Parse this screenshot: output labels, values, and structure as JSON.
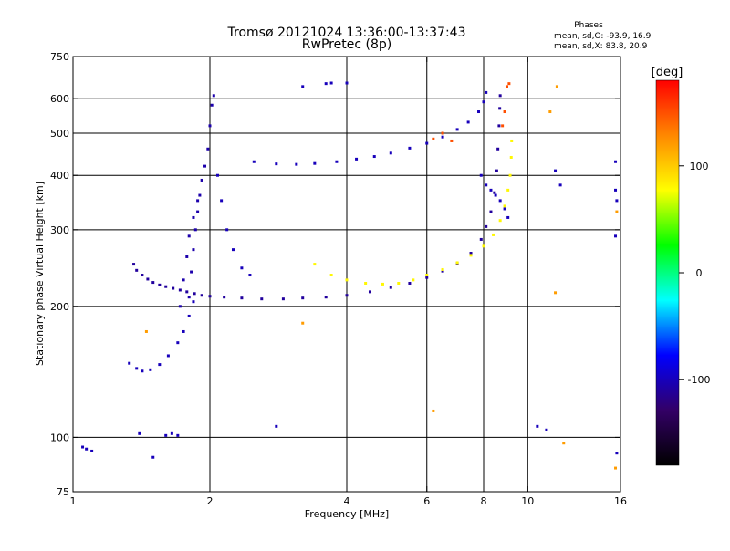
{
  "title": {
    "line1": "Tromsø 20121024 13:36:00-13:37:43",
    "line2": "RwPretec (8p)"
  },
  "stats": {
    "heading": "Phases",
    "line_o": "mean, sd,O: -93.9, 16.9",
    "line_x": "mean, sd,X:  83.8, 20.9"
  },
  "colorbar": {
    "label": "[deg]",
    "min": -180,
    "max": 180,
    "ticks": [
      100,
      0,
      -100
    ],
    "tick_labels": [
      "100",
      "0",
      "-100"
    ],
    "colors": [
      "#ff0000",
      "#ff8800",
      "#ffff00",
      "#00ff00",
      "#00ffff",
      "#0000ff",
      "#330066",
      "#000000"
    ]
  },
  "chart_data": {
    "type": "scatter",
    "xlabel": "Frequency [MHz]",
    "ylabel": "Stationary phase Virtual Height [km]",
    "xscale": "log",
    "yscale": "log",
    "xlim": [
      1,
      16
    ],
    "ylim": [
      75,
      750
    ],
    "xticks": [
      1,
      2,
      4,
      6,
      8,
      10,
      16
    ],
    "xtick_labels": [
      "1",
      "2",
      "4",
      "6",
      "8",
      "10",
      "16"
    ],
    "yticks": [
      75,
      100,
      200,
      300,
      400,
      500,
      600,
      750
    ],
    "ytick_labels": [
      "75",
      "100",
      "200",
      "300",
      "400",
      "500",
      "600",
      "750"
    ],
    "grid_x": [
      2,
      4,
      6,
      8,
      10
    ],
    "grid_y": [
      100,
      200,
      300,
      400,
      500,
      600
    ],
    "grid": true,
    "color_value": "phase [deg]",
    "traces": [
      {
        "points": [
          [
            1.36,
            250
          ],
          [
            1.38,
            242
          ],
          [
            1.42,
            236
          ],
          [
            1.46,
            231
          ],
          [
            1.5,
            227
          ],
          [
            1.55,
            224
          ],
          [
            1.6,
            222
          ],
          [
            1.66,
            220
          ],
          [
            1.72,
            218
          ],
          [
            1.78,
            216
          ],
          [
            1.85,
            214
          ],
          [
            1.92,
            212
          ],
          [
            2.0,
            211
          ],
          [
            2.15,
            210
          ],
          [
            2.35,
            209
          ],
          [
            2.6,
            208
          ],
          [
            2.9,
            208
          ],
          [
            3.2,
            209
          ],
          [
            3.6,
            210
          ],
          [
            4.0,
            212
          ],
          [
            4.5,
            216
          ],
          [
            5.0,
            221
          ],
          [
            5.5,
            226
          ],
          [
            6.0,
            233
          ],
          [
            6.5,
            241
          ],
          [
            7.0,
            251
          ],
          [
            7.5,
            265
          ],
          [
            7.9,
            285
          ],
          [
            8.1,
            305
          ],
          [
            8.3,
            330
          ],
          [
            8.45,
            365
          ],
          [
            8.55,
            410
          ],
          [
            8.6,
            460
          ],
          [
            8.65,
            520
          ],
          [
            8.68,
            570
          ],
          [
            8.7,
            610
          ]
        ],
        "phase": -110
      },
      {
        "points": [
          [
            3.4,
            250
          ],
          [
            3.7,
            236
          ],
          [
            4.0,
            230
          ],
          [
            4.4,
            226
          ],
          [
            4.8,
            225
          ],
          [
            5.2,
            226
          ],
          [
            5.6,
            230
          ],
          [
            6.0,
            236
          ],
          [
            6.5,
            243
          ],
          [
            7.0,
            252
          ],
          [
            7.5,
            262
          ],
          [
            8.0,
            275
          ],
          [
            8.4,
            292
          ],
          [
            8.7,
            315
          ],
          [
            8.9,
            340
          ],
          [
            9.05,
            370
          ],
          [
            9.15,
            400
          ],
          [
            9.2,
            440
          ],
          [
            9.22,
            480
          ]
        ],
        "phase": 80
      },
      {
        "points": [
          [
            2.5,
            430
          ],
          [
            2.8,
            425
          ],
          [
            3.1,
            424
          ],
          [
            3.4,
            426
          ],
          [
            3.8,
            430
          ],
          [
            4.2,
            436
          ],
          [
            4.6,
            442
          ],
          [
            5.0,
            450
          ],
          [
            5.5,
            462
          ],
          [
            6.0,
            474
          ],
          [
            6.5,
            490
          ],
          [
            7.0,
            510
          ],
          [
            7.4,
            530
          ],
          [
            7.8,
            560
          ],
          [
            8.0,
            590
          ],
          [
            8.1,
            620
          ]
        ],
        "phase": -100
      },
      {
        "points": [
          [
            7.9,
            400
          ],
          [
            8.1,
            380
          ],
          [
            8.3,
            370
          ],
          [
            8.5,
            360
          ],
          [
            8.7,
            350
          ],
          [
            8.9,
            335
          ],
          [
            9.05,
            320
          ]
        ],
        "phase": -100
      },
      {
        "points": [
          [
            1.33,
            148
          ],
          [
            1.38,
            144
          ],
          [
            1.42,
            142
          ],
          [
            1.48,
            143
          ],
          [
            1.55,
            147
          ],
          [
            1.62,
            154
          ],
          [
            1.7,
            165
          ],
          [
            1.75,
            175
          ],
          [
            1.8,
            190
          ],
          [
            1.84,
            205
          ]
        ],
        "phase": -100
      },
      {
        "points": [
          [
            1.8,
            210
          ],
          [
            1.82,
            240
          ],
          [
            1.84,
            270
          ],
          [
            1.86,
            300
          ],
          [
            1.88,
            330
          ],
          [
            1.9,
            360
          ],
          [
            1.92,
            390
          ],
          [
            1.95,
            420
          ],
          [
            1.98,
            460
          ],
          [
            2.0,
            520
          ],
          [
            2.02,
            580
          ],
          [
            2.04,
            610
          ]
        ],
        "phase": -105
      },
      {
        "points": [
          [
            1.72,
            200
          ],
          [
            1.75,
            230
          ],
          [
            1.78,
            260
          ],
          [
            1.8,
            290
          ],
          [
            1.84,
            320
          ],
          [
            1.88,
            350
          ]
        ],
        "phase": -105
      },
      {
        "points": [
          [
            2.08,
            400
          ],
          [
            2.12,
            350
          ],
          [
            2.18,
            300
          ],
          [
            2.25,
            270
          ],
          [
            2.35,
            245
          ],
          [
            2.45,
            236
          ]
        ],
        "phase": -100
      },
      {
        "points": [
          [
            6.2,
            485
          ],
          [
            6.5,
            500
          ],
          [
            6.8,
            480
          ],
          [
            8.8,
            520
          ],
          [
            8.9,
            560
          ],
          [
            9.0,
            640
          ],
          [
            9.1,
            650
          ]
        ],
        "phase": 150
      },
      {
        "points": [
          [
            1.05,
            95
          ],
          [
            1.07,
            94
          ],
          [
            1.1,
            93
          ],
          [
            1.4,
            102
          ],
          [
            1.6,
            101
          ],
          [
            1.65,
            102
          ],
          [
            1.7,
            101
          ],
          [
            1.5,
            90
          ],
          [
            2.8,
            106
          ],
          [
            3.2,
            640
          ],
          [
            3.6,
            650
          ],
          [
            3.7,
            652
          ],
          [
            4.0,
            652
          ],
          [
            10.5,
            106
          ],
          [
            11.0,
            104
          ],
          [
            11.5,
            410
          ],
          [
            11.8,
            380
          ],
          [
            15.6,
            430
          ],
          [
            15.6,
            370
          ],
          [
            15.7,
            350
          ],
          [
            15.6,
            290
          ],
          [
            15.7,
            92
          ]
        ],
        "phase": -100
      },
      {
        "points": [
          [
            11.2,
            560
          ],
          [
            11.6,
            640
          ],
          [
            15.7,
            330
          ],
          [
            11.5,
            215
          ],
          [
            6.2,
            115
          ],
          [
            12.0,
            97
          ],
          [
            15.6,
            85
          ],
          [
            3.2,
            183
          ],
          [
            1.45,
            175
          ]
        ],
        "phase": 120
      }
    ]
  }
}
